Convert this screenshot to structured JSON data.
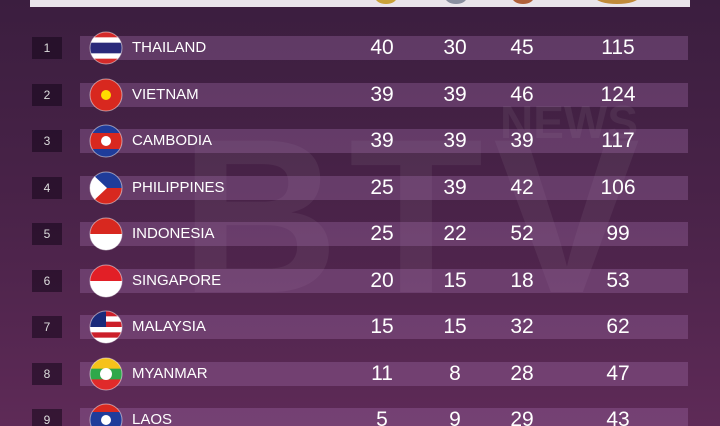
{
  "watermark": [
    "BTV",
    "NEWS"
  ],
  "table": {
    "rows": [
      [
        "1",
        "THAILAND",
        "40",
        "30",
        "45",
        "115"
      ],
      [
        "2",
        "VIETNAM",
        "39",
        "39",
        "46",
        "124"
      ],
      [
        "3",
        "CAMBODIA",
        "39",
        "39",
        "39",
        "117"
      ],
      [
        "4",
        "PHILIPPINES",
        "25",
        "39",
        "42",
        "106"
      ],
      [
        "5",
        "INDONESIA",
        "25",
        "22",
        "52",
        "99"
      ],
      [
        "6",
        "SINGAPORE",
        "20",
        "15",
        "18",
        "53"
      ],
      [
        "7",
        "MALAYSIA",
        "15",
        "15",
        "32",
        "62"
      ],
      [
        "8",
        "MYANMAR",
        "11",
        "8",
        "28",
        "47"
      ],
      [
        "9",
        "LAOS",
        "5",
        "9",
        "29",
        "43"
      ]
    ]
  }
}
